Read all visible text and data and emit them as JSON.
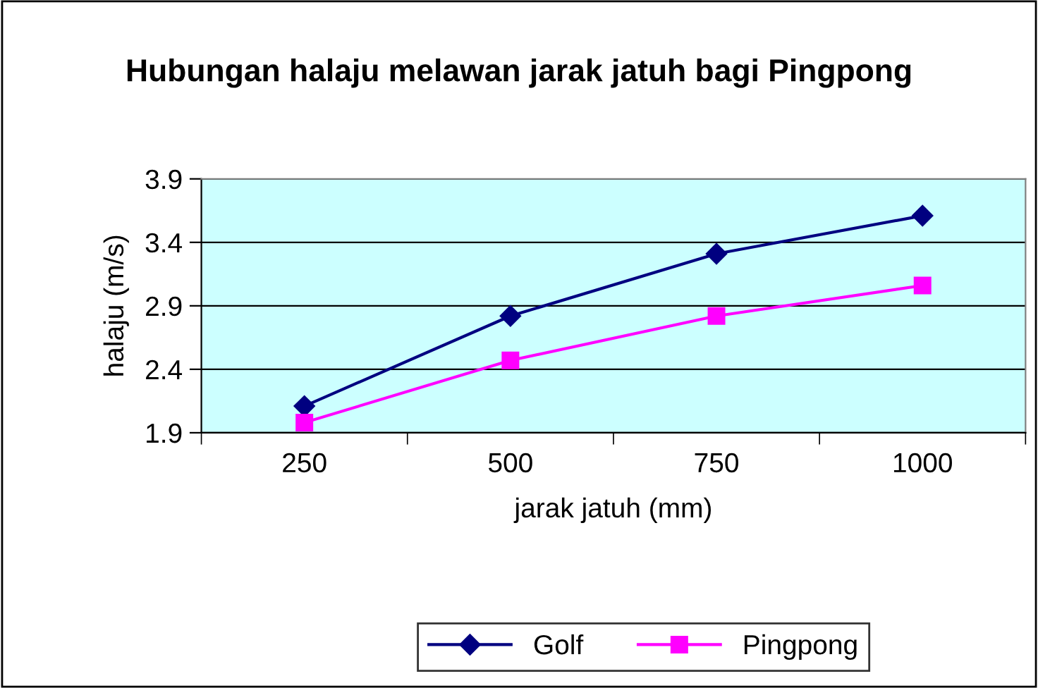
{
  "chart_data": {
    "type": "line",
    "title": "Hubungan halaju melawan jarak jatuh bagi Pingpong",
    "xlabel": "jarak jatuh (mm)",
    "ylabel": "halaju (m/s)",
    "categories": [
      "250",
      "500",
      "750",
      "1000"
    ],
    "series": [
      {
        "name": "Golf",
        "color": "#000080",
        "marker": "diamond",
        "values": [
          2.11,
          2.82,
          3.31,
          3.61
        ]
      },
      {
        "name": "Pingpong",
        "color": "#ff00ff",
        "marker": "square",
        "values": [
          1.98,
          2.47,
          2.82,
          3.06
        ]
      }
    ],
    "ylim": [
      1.9,
      3.9
    ],
    "yticks": [
      1.9,
      2.4,
      2.9,
      3.4,
      3.9
    ],
    "grid": "y",
    "legend": "bottom",
    "line_style": "solid"
  }
}
